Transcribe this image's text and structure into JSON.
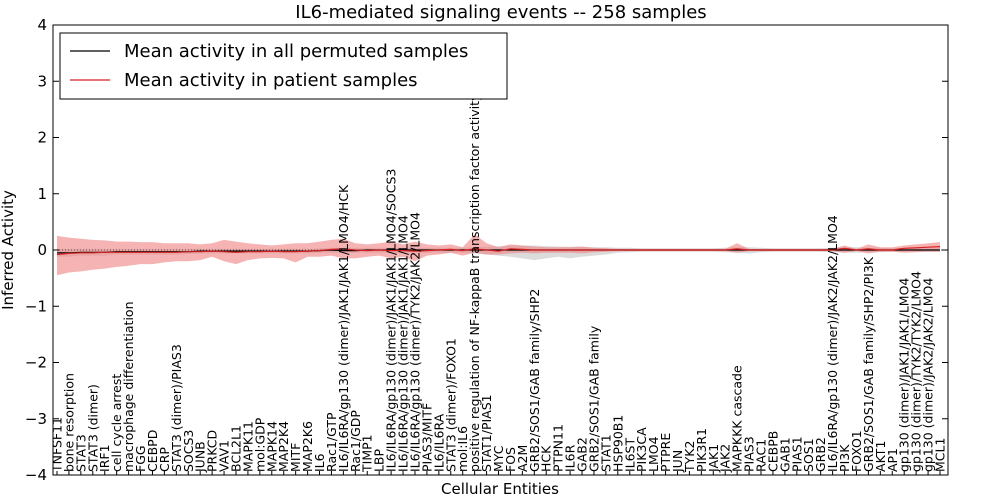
{
  "chart_data": {
    "type": "line",
    "title": "IL6-mediated signaling events -- 258 samples",
    "xlabel": "Cellular Entities",
    "ylabel": "Inferred Activity",
    "ylim": [
      -4,
      4
    ],
    "yticks": [
      -4,
      -3,
      -2,
      -1,
      0,
      1,
      2,
      3,
      4
    ],
    "legend_position": "upper-left",
    "colors": {
      "permuted": "#000000",
      "patient": "#d62020",
      "patient_band": "#f08080",
      "permuted_band": "#b0b0b0",
      "zero_line": "#555555"
    },
    "categories": [
      "TNFSF11",
      "bone resorption",
      "STAT3",
      "STAT3 (dimer)",
      "IRF1",
      "cell cycle arrest",
      "macrophage differentiation",
      "FGG",
      "CEBPD",
      "CRP",
      "STAT3 (dimer)/PIAS3",
      "SOCS3",
      "JUNB",
      "PRKCD",
      "VAV1",
      "BCL2L1",
      "MAPK11",
      "mol:GDP",
      "MAPK14",
      "MAP2K4",
      "MITF",
      "MAP2K6",
      "IL6",
      "Rac1/GTP",
      "IL6/IL6RA/gp130 (dimer)/JAK1/JAK1/LMO4/HCK",
      "Rac1/GDP",
      "TIMP1",
      "LBP",
      "IL6/IL6RA/gp130 (dimer)/JAK1/JAK1/LMO4/SOCS3",
      "IL6/IL6RA/gp130 (dimer)/JAK1/JAK1/LMO4",
      "IL6/IL6RA/gp130 (dimer)/TYK2/JAK2/LMO4",
      "PIAS3/MITF",
      "IL6/IL6RA",
      "STAT3 (dimer)/FOXO1",
      "mol:IL6",
      "positive regulation of NF-kappaB transcription factor activity",
      "STAT1/PIAS1",
      "MYC",
      "FOS",
      "A2M",
      "GRB2/SOS1/GAB family/SHP2",
      "HCK",
      "PTPN11",
      "IL6R",
      "GAB2",
      "GRB2/SOS1/GAB family",
      "STAT1",
      "HSP90B1",
      "IL6ST",
      "PIK3CA",
      "LMO4",
      "PTPRE",
      "JUN",
      "TYK2",
      "PIK3R1",
      "JAK1",
      "JAK2",
      "MAPKKK cascade",
      "PIAS3",
      "RAC1",
      "CEBPB",
      "GAB1",
      "PIAS1",
      "SOS1",
      "GRB2",
      "IL6/IL6RA/gp130 (dimer)/JAK2/JAK2/LMO4",
      "PI3K",
      "FOXO1",
      "GRB2/SOS1/GAB family/SHP2/PI3K",
      "AKT1",
      "AP1",
      "gp130 (dimer)/JAK1/JAK1/LMO4",
      "gp130 (dimer)/TYK2/TYK2/LMO4",
      "gp130 (dimer)/JAK2/JAK2/LMO4",
      "MCL1"
    ],
    "series": [
      {
        "name": "Mean activity in all permuted samples",
        "values": [
          -0.05,
          -0.05,
          -0.04,
          -0.04,
          -0.04,
          -0.03,
          -0.03,
          -0.03,
          -0.03,
          -0.03,
          -0.03,
          -0.03,
          -0.02,
          -0.02,
          -0.02,
          -0.02,
          -0.02,
          -0.02,
          -0.02,
          -0.02,
          -0.02,
          -0.02,
          -0.01,
          0.0,
          -0.01,
          -0.01,
          0.0,
          0.0,
          0.0,
          0.0,
          0.0,
          0.0,
          0.0,
          0.0,
          0.0,
          0.0,
          0.0,
          0.0,
          0.0,
          0.0,
          0.0,
          0.0,
          0.0,
          0.0,
          0.0,
          0.0,
          0.0,
          0.0,
          0.0,
          0.0,
          0.0,
          0.0,
          0.0,
          0.0,
          0.0,
          0.0,
          0.0,
          0.0,
          0.0,
          0.0,
          0.0,
          0.0,
          0.0,
          0.0,
          0.0,
          0.0,
          0.0,
          0.0,
          0.0,
          0.0,
          0.0,
          0.0,
          0.0,
          0.0,
          0.0
        ],
        "lower": [
          -0.12,
          -0.12,
          -0.1,
          -0.1,
          -0.1,
          -0.08,
          -0.08,
          -0.08,
          -0.08,
          -0.08,
          -0.08,
          -0.07,
          -0.06,
          -0.06,
          -0.06,
          -0.06,
          -0.06,
          -0.06,
          -0.06,
          -0.06,
          -0.06,
          -0.06,
          -0.05,
          -0.05,
          -0.05,
          -0.05,
          -0.05,
          -0.05,
          -0.05,
          -0.05,
          -0.05,
          -0.05,
          -0.05,
          -0.05,
          -0.05,
          -0.06,
          -0.08,
          -0.1,
          -0.12,
          -0.15,
          -0.18,
          -0.15,
          -0.12,
          -0.15,
          -0.12,
          -0.1,
          -0.08,
          -0.05,
          -0.04,
          -0.03,
          -0.03,
          -0.03,
          -0.03,
          -0.03,
          -0.03,
          -0.03,
          -0.04,
          -0.05,
          -0.06,
          -0.04,
          -0.03,
          -0.03,
          -0.03,
          -0.03,
          -0.03,
          -0.04,
          -0.05,
          -0.05,
          -0.04,
          -0.04,
          -0.03,
          -0.03,
          -0.03,
          -0.03,
          -0.03
        ],
        "upper": [
          0.02,
          0.02,
          0.02,
          0.02,
          0.02,
          0.02,
          0.02,
          0.02,
          0.02,
          0.02,
          0.02,
          0.02,
          0.02,
          0.02,
          0.02,
          0.02,
          0.02,
          0.02,
          0.02,
          0.02,
          0.02,
          0.02,
          0.03,
          0.04,
          0.04,
          0.04,
          0.04,
          0.04,
          0.04,
          0.04,
          0.04,
          0.04,
          0.04,
          0.04,
          0.04,
          0.05,
          0.06,
          0.07,
          0.08,
          0.08,
          0.08,
          0.07,
          0.06,
          0.06,
          0.06,
          0.05,
          0.05,
          0.04,
          0.04,
          0.03,
          0.03,
          0.03,
          0.03,
          0.03,
          0.03,
          0.03,
          0.04,
          0.05,
          0.05,
          0.04,
          0.03,
          0.03,
          0.03,
          0.03,
          0.03,
          0.04,
          0.05,
          0.05,
          0.04,
          0.04,
          0.03,
          0.03,
          0.03,
          0.03,
          0.03
        ]
      },
      {
        "name": "Mean activity in patient samples",
        "values": [
          -0.08,
          -0.06,
          -0.05,
          -0.05,
          -0.04,
          -0.04,
          -0.04,
          -0.04,
          -0.04,
          -0.04,
          -0.04,
          -0.03,
          -0.03,
          -0.02,
          -0.03,
          -0.04,
          -0.03,
          -0.03,
          -0.02,
          -0.03,
          -0.03,
          -0.02,
          -0.01,
          0.01,
          0.02,
          0.0,
          -0.01,
          0.0,
          -0.01,
          -0.01,
          -0.02,
          -0.01,
          0.0,
          0.01,
          -0.01,
          0.02,
          0.0,
          -0.02,
          0.02,
          0.01,
          0.0,
          0.0,
          0.0,
          0.0,
          0.0,
          0.0,
          0.0,
          0.0,
          0.0,
          0.0,
          0.0,
          0.0,
          0.0,
          0.0,
          0.0,
          0.0,
          0.0,
          0.02,
          0.0,
          0.0,
          0.0,
          0.0,
          0.0,
          0.0,
          0.0,
          0.0,
          0.03,
          0.0,
          0.02,
          0.0,
          0.0,
          0.03,
          0.04,
          0.05,
          0.06
        ],
        "lower": [
          -0.45,
          -0.4,
          -0.38,
          -0.35,
          -0.33,
          -0.3,
          -0.28,
          -0.25,
          -0.25,
          -0.22,
          -0.2,
          -0.2,
          -0.18,
          -0.12,
          -0.2,
          -0.25,
          -0.18,
          -0.15,
          -0.14,
          -0.15,
          -0.22,
          -0.12,
          -0.12,
          -0.1,
          -0.15,
          -0.15,
          -0.12,
          -0.1,
          -0.15,
          -0.12,
          -0.2,
          -0.1,
          -0.08,
          -0.05,
          -0.1,
          -0.05,
          -0.08,
          -0.08,
          -0.06,
          -0.05,
          -0.06,
          -0.05,
          -0.05,
          -0.05,
          -0.06,
          -0.04,
          -0.03,
          -0.02,
          -0.02,
          -0.02,
          -0.02,
          -0.02,
          -0.02,
          -0.02,
          -0.02,
          -0.02,
          -0.02,
          -0.05,
          -0.02,
          -0.02,
          -0.02,
          -0.02,
          -0.02,
          -0.02,
          -0.02,
          -0.02,
          -0.05,
          -0.02,
          -0.06,
          -0.03,
          -0.03,
          -0.05,
          -0.04,
          -0.03,
          -0.03
        ],
        "upper": [
          0.25,
          0.22,
          0.2,
          0.18,
          0.17,
          0.15,
          0.15,
          0.14,
          0.14,
          0.12,
          0.12,
          0.12,
          0.1,
          0.12,
          0.18,
          0.15,
          0.12,
          0.1,
          0.08,
          0.1,
          0.12,
          0.12,
          0.15,
          0.18,
          0.2,
          0.12,
          0.1,
          0.12,
          0.15,
          0.1,
          0.15,
          0.1,
          0.08,
          0.1,
          0.05,
          0.28,
          0.12,
          0.05,
          0.1,
          0.08,
          0.06,
          0.05,
          0.05,
          0.05,
          0.06,
          0.04,
          0.03,
          0.02,
          0.02,
          0.02,
          0.02,
          0.02,
          0.02,
          0.02,
          0.02,
          0.02,
          0.02,
          0.12,
          0.02,
          0.02,
          0.02,
          0.02,
          0.02,
          0.02,
          0.02,
          0.02,
          0.08,
          0.02,
          0.1,
          0.05,
          0.05,
          0.08,
          0.1,
          0.12,
          0.14
        ]
      }
    ]
  }
}
